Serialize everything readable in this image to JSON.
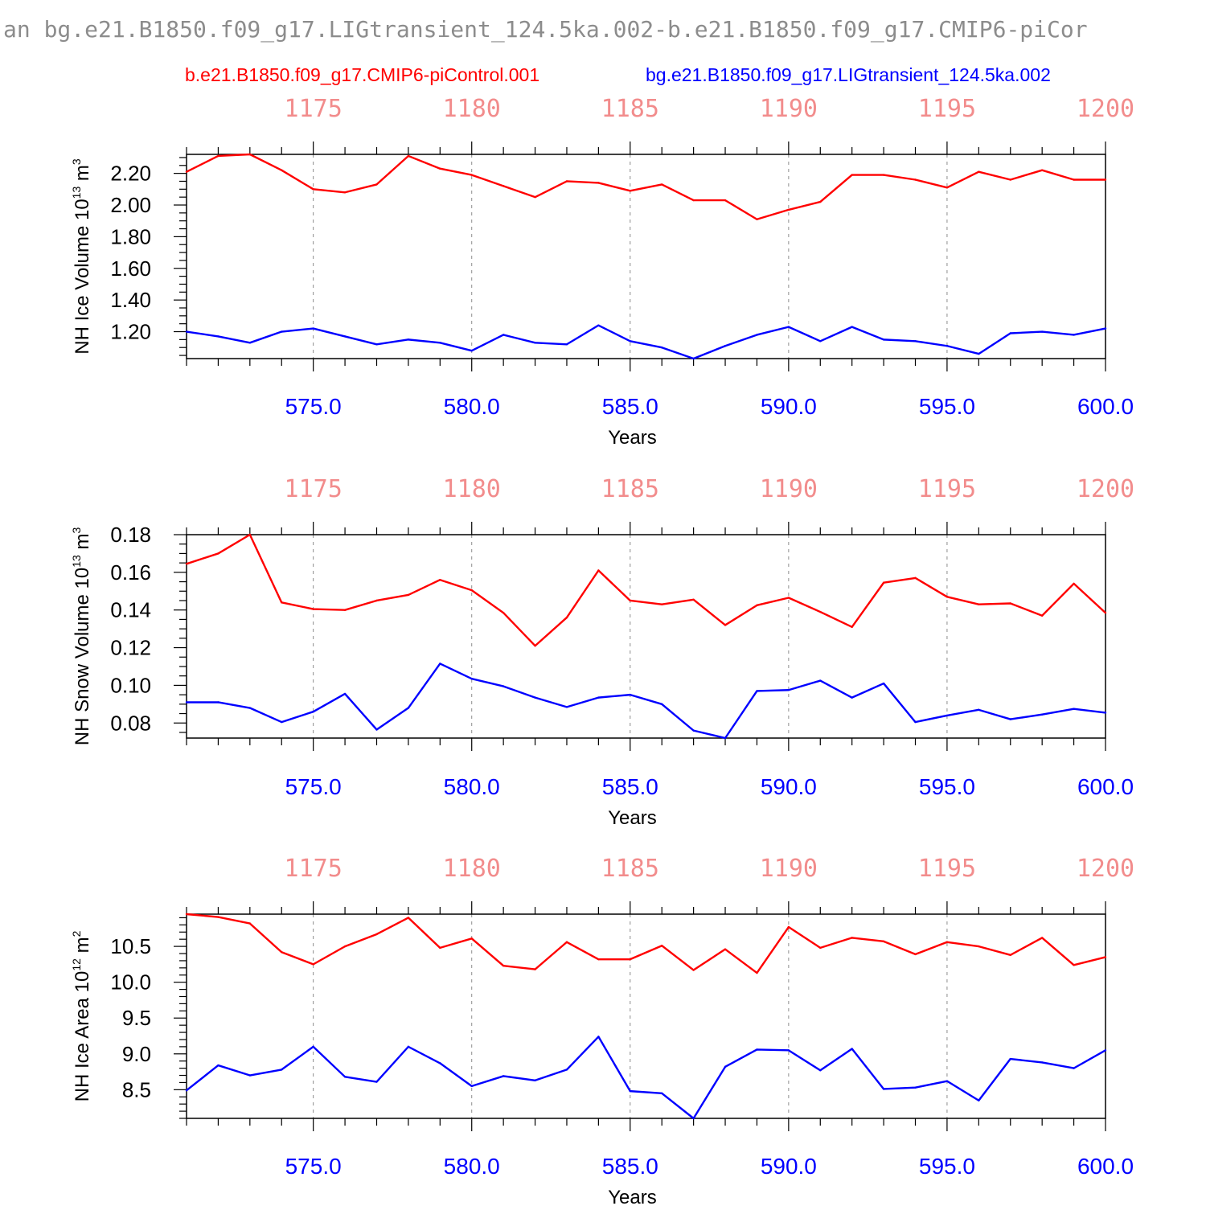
{
  "title": "an bg.e21.B1850.f09_g17.LIGtransient_124.5ka.002-b.e21.B1850.f09_g17.CMIP6-piCor",
  "legend": [
    {
      "label": "b.e21.B1850.f09_g17.CMIP6-piControl.001",
      "color": "#ff0000"
    },
    {
      "label": "bg.e21.B1850.f09_g17.LIGtransient_124.5ka.002",
      "color": "#0000ff"
    }
  ],
  "colors": {
    "red_series": "#ff0000",
    "blue_series": "#0000ff",
    "top_axis": "#f28c8c",
    "bottom_axis": "#0000ff"
  },
  "chart_data": [
    {
      "type": "line",
      "ylabel": "NH Ice Volume 10",
      "ylabel_exp": "13",
      "ylabel_unit": " m",
      "ylabel_unit_exp": "3",
      "xlabel": "Years",
      "xlim": [
        571,
        600
      ],
      "ylim": [
        1.03,
        2.32
      ],
      "yticks": [
        1.2,
        1.4,
        1.6,
        1.8,
        2.0,
        2.2
      ],
      "ytick_labels": [
        "1.20",
        "1.40",
        "1.60",
        "1.80",
        "2.00",
        "2.20"
      ],
      "yminor_step": 0.05,
      "xticks": [
        575,
        580,
        585,
        590,
        595,
        600
      ],
      "xtick_labels": [
        "575.0",
        "580.0",
        "585.0",
        "590.0",
        "595.0",
        "600.0"
      ],
      "top_ticks": [
        575,
        580,
        585,
        590,
        595,
        600
      ],
      "top_tick_labels": [
        "1175",
        "1180",
        "1185",
        "1190",
        "1195",
        "1200"
      ],
      "grid": "vertical dashed at major ticks",
      "x": [
        571,
        572,
        573,
        574,
        575,
        576,
        577,
        578,
        579,
        580,
        581,
        582,
        583,
        584,
        585,
        586,
        587,
        588,
        589,
        590,
        591,
        592,
        593,
        594,
        595,
        596,
        597,
        598,
        599,
        600
      ],
      "series": [
        {
          "name": "b.e21.B1850.f09_g17.CMIP6-piControl.001",
          "color": "#ff0000",
          "values": [
            2.21,
            2.31,
            2.32,
            2.22,
            2.1,
            2.08,
            2.13,
            2.31,
            2.23,
            2.19,
            2.12,
            2.05,
            2.15,
            2.14,
            2.09,
            2.13,
            2.03,
            2.03,
            1.91,
            1.97,
            2.02,
            2.19,
            2.19,
            2.16,
            2.11,
            2.21,
            2.16,
            2.22,
            2.16,
            2.16
          ]
        },
        {
          "name": "bg.e21.B1850.f09_g17.LIGtransient_124.5ka.002",
          "color": "#0000ff",
          "values": [
            1.2,
            1.17,
            1.13,
            1.2,
            1.22,
            1.17,
            1.12,
            1.15,
            1.13,
            1.08,
            1.18,
            1.13,
            1.12,
            1.24,
            1.14,
            1.1,
            1.03,
            1.11,
            1.18,
            1.23,
            1.14,
            1.23,
            1.15,
            1.14,
            1.11,
            1.06,
            1.19,
            1.2,
            1.18,
            1.22
          ]
        }
      ]
    },
    {
      "type": "line",
      "ylabel": "NH Snow Volume 10",
      "ylabel_exp": "13",
      "ylabel_unit": " m",
      "ylabel_unit_exp": "3",
      "xlabel": "Years",
      "xlim": [
        571,
        600
      ],
      "ylim": [
        0.072,
        0.18
      ],
      "yticks": [
        0.08,
        0.1,
        0.12,
        0.14,
        0.16,
        0.18
      ],
      "ytick_labels": [
        "0.08",
        "0.10",
        "0.12",
        "0.14",
        "0.16",
        "0.18"
      ],
      "yminor_step": 0.005,
      "xticks": [
        575,
        580,
        585,
        590,
        595,
        600
      ],
      "xtick_labels": [
        "575.0",
        "580.0",
        "585.0",
        "590.0",
        "595.0",
        "600.0"
      ],
      "top_ticks": [
        575,
        580,
        585,
        590,
        595,
        600
      ],
      "top_tick_labels": [
        "1175",
        "1180",
        "1185",
        "1190",
        "1195",
        "1200"
      ],
      "grid": "vertical dashed at major ticks",
      "x": [
        571,
        572,
        573,
        574,
        575,
        576,
        577,
        578,
        579,
        580,
        581,
        582,
        583,
        584,
        585,
        586,
        587,
        588,
        589,
        590,
        591,
        592,
        593,
        594,
        595,
        596,
        597,
        598,
        599,
        600
      ],
      "series": [
        {
          "name": "b.e21.B1850.f09_g17.CMIP6-piControl.001",
          "color": "#ff0000",
          "values": [
            0.1645,
            0.17,
            0.18,
            0.144,
            0.1405,
            0.14,
            0.145,
            0.148,
            0.156,
            0.1505,
            0.1385,
            0.121,
            0.136,
            0.161,
            0.145,
            0.143,
            0.1455,
            0.132,
            0.1425,
            0.1465,
            0.139,
            0.131,
            0.1545,
            0.157,
            0.147,
            0.143,
            0.1435,
            0.137,
            0.154,
            0.1385
          ]
        },
        {
          "name": "bg.e21.B1850.f09_g17.LIGtransient_124.5ka.002",
          "color": "#0000ff",
          "values": [
            0.091,
            0.091,
            0.088,
            0.0805,
            0.086,
            0.0955,
            0.0765,
            0.088,
            0.1115,
            0.1035,
            0.0995,
            0.0935,
            0.0885,
            0.0935,
            0.095,
            0.09,
            0.076,
            0.072,
            0.097,
            0.0975,
            0.1025,
            0.0935,
            0.101,
            0.0805,
            0.084,
            0.087,
            0.082,
            0.0845,
            0.0875,
            0.0855
          ]
        }
      ]
    },
    {
      "type": "line",
      "ylabel": "NH Ice Area 10",
      "ylabel_exp": "12",
      "ylabel_unit": " m",
      "ylabel_unit_exp": "2",
      "xlabel": "Years",
      "xlim": [
        571,
        600
      ],
      "ylim": [
        8.1,
        10.95
      ],
      "yticks": [
        8.5,
        9.0,
        9.5,
        10.0,
        10.5
      ],
      "ytick_labels": [
        "8.5",
        "9.0",
        "9.5",
        "10.0",
        "10.5"
      ],
      "yminor_step": 0.1,
      "xticks": [
        575,
        580,
        585,
        590,
        595,
        600
      ],
      "xtick_labels": [
        "575.0",
        "580.0",
        "585.0",
        "590.0",
        "595.0",
        "600.0"
      ],
      "top_ticks": [
        575,
        580,
        585,
        590,
        595,
        600
      ],
      "top_tick_labels": [
        "1175",
        "1180",
        "1185",
        "1190",
        "1195",
        "1200"
      ],
      "grid": "vertical dashed at major ticks",
      "x": [
        571,
        572,
        573,
        574,
        575,
        576,
        577,
        578,
        579,
        580,
        581,
        582,
        583,
        584,
        585,
        586,
        587,
        588,
        589,
        590,
        591,
        592,
        593,
        594,
        595,
        596,
        597,
        598,
        599,
        600
      ],
      "series": [
        {
          "name": "b.e21.B1850.f09_g17.CMIP6-piControl.001",
          "color": "#ff0000",
          "values": [
            10.95,
            10.91,
            10.82,
            10.42,
            10.25,
            10.5,
            10.67,
            10.9,
            10.48,
            10.61,
            10.23,
            10.18,
            10.56,
            10.32,
            10.32,
            10.51,
            10.17,
            10.46,
            10.13,
            10.77,
            10.48,
            10.62,
            10.57,
            10.39,
            10.56,
            10.5,
            10.38,
            10.62,
            10.24,
            10.35
          ]
        },
        {
          "name": "bg.e21.B1850.f09_g17.LIGtransient_124.5ka.002",
          "color": "#0000ff",
          "values": [
            8.49,
            8.84,
            8.7,
            8.78,
            9.1,
            8.68,
            8.61,
            9.1,
            8.87,
            8.55,
            8.69,
            8.63,
            8.78,
            9.24,
            8.48,
            8.45,
            8.1,
            8.82,
            9.06,
            9.05,
            8.77,
            9.07,
            8.51,
            8.53,
            8.62,
            8.35,
            8.93,
            8.88,
            8.8,
            9.05
          ]
        }
      ]
    }
  ]
}
